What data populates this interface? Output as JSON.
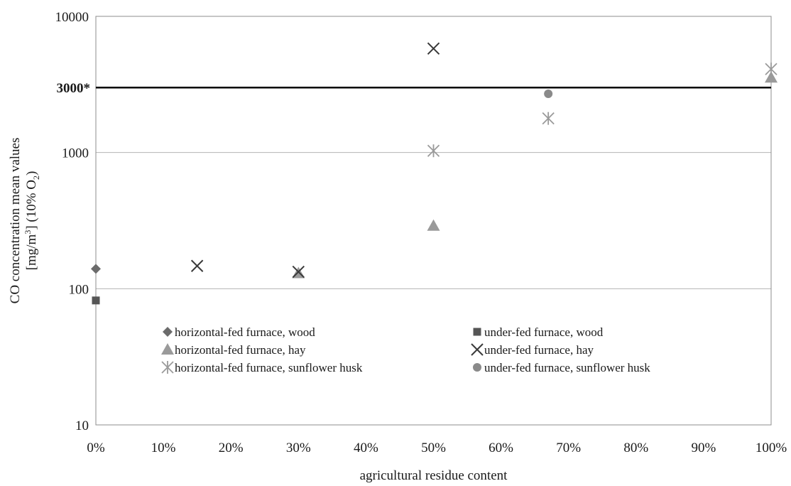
{
  "chart_data": {
    "type": "scatter",
    "title": "",
    "xlabel": "agricultural residue content",
    "ylabel_line1": "CO concentration mean values",
    "ylabel_line2": {
      "pre": "[mg/m",
      "sup": "3",
      "mid": "] (10% O",
      "sub": "2",
      "post": ")"
    },
    "xlim": [
      0,
      100
    ],
    "ylim": [
      10,
      10000
    ],
    "yscale": "log",
    "x_ticks": [
      0,
      10,
      20,
      30,
      40,
      50,
      60,
      70,
      80,
      90,
      100
    ],
    "x_tick_labels": [
      "0%",
      "10%",
      "20%",
      "30%",
      "40%",
      "50%",
      "60%",
      "70%",
      "80%",
      "90%",
      "100%"
    ],
    "y_ticks": [
      10,
      100,
      1000,
      10000
    ],
    "y_tick_labels": [
      "10",
      "100",
      "1000",
      "10000"
    ],
    "gridlines": [
      100,
      1000
    ],
    "grid": true,
    "limit_line": {
      "value": 3000,
      "label": "3000*"
    },
    "legend_position": "bottom-inside",
    "series": [
      {
        "name": "horizontal-fed furnace, wood",
        "marker": "diamond",
        "color": "#6b6b6b",
        "points": [
          [
            0,
            140
          ]
        ]
      },
      {
        "name": "under-fed furnace, wood",
        "marker": "square",
        "color": "#555555",
        "points": [
          [
            0,
            82
          ]
        ]
      },
      {
        "name": "horizontal-fed furnace, hay",
        "marker": "triangle",
        "color": "#9a9a9a",
        "points": [
          [
            30,
            130
          ],
          [
            50,
            290
          ],
          [
            100,
            3550
          ]
        ]
      },
      {
        "name": "under-fed furnace, hay",
        "marker": "x",
        "color": "#3a3a3a",
        "points": [
          [
            15,
            147
          ],
          [
            30,
            133
          ],
          [
            50,
            5800
          ]
        ]
      },
      {
        "name": "horizontal-fed furnace, sunflower husk",
        "marker": "asterisk",
        "color": "#9a9a9a",
        "points": [
          [
            50,
            1030
          ],
          [
            67,
            1780
          ],
          [
            100,
            4100
          ]
        ]
      },
      {
        "name": "under-fed furnace, sunflower husk",
        "marker": "circle",
        "color": "#8a8a8a",
        "points": [
          [
            67,
            2700
          ]
        ]
      }
    ]
  }
}
